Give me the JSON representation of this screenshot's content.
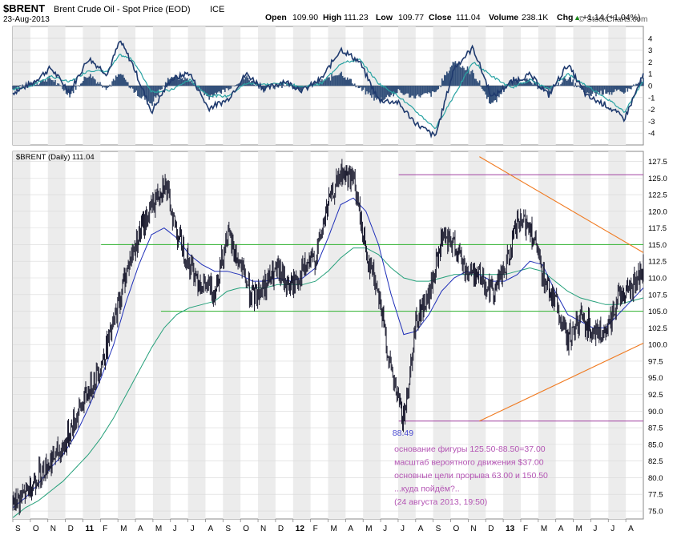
{
  "header": {
    "symbol": "$BRENT",
    "name": "Brent Crude Oil - Spot Price (EOD)",
    "exchange": "ICE",
    "date": "23-Aug-2013",
    "brand": "© StockCharts.com"
  },
  "quote": {
    "open_label": "Open",
    "open": "109.90",
    "high_label": "High",
    "high": "111.23",
    "low_label": "Low",
    "low": "109.77",
    "close_label": "Close",
    "close": "111.04",
    "volume_label": "Volume",
    "volume": "238.1K",
    "chg_label": "Chg",
    "chg": "+1.14 (+1.04%)",
    "chg_symbol": "▲"
  },
  "colors": {
    "price": "#1a1a2e",
    "ma_fast": "#1f2fb8",
    "ma_slow": "#25a07a",
    "trendline": "#f07a20",
    "horizontal": "#2fb32f",
    "target": "#a040a0",
    "osc_macd": "#1f3a6e",
    "osc_signal": "#2aa3a3",
    "osc_hist": "#33507a",
    "panel_bg_shade": "#ececec",
    "annotation": "#b455b4",
    "low_label": "#4a4ad0"
  },
  "chart_data": [
    {
      "type": "line",
      "panel": "oscillator",
      "ylim": [
        -5,
        5
      ],
      "yticks": [
        "4",
        "3",
        "2",
        "1",
        "0",
        "-1",
        "-2",
        "-3",
        "-4"
      ],
      "series": [],
      "trace_x": [
        0,
        0.03,
        0.06,
        0.09,
        0.12,
        0.15,
        0.17,
        0.19,
        0.22,
        0.25,
        0.28,
        0.31,
        0.34,
        0.37,
        0.4,
        0.43,
        0.46,
        0.49,
        0.52,
        0.55,
        0.58,
        0.61,
        0.64,
        0.67,
        0.7,
        0.73,
        0.76,
        0.79,
        0.82,
        0.85,
        0.88,
        0.91,
        0.94,
        0.97,
        1.0
      ],
      "macd": [
        -0.6,
        0.2,
        1.5,
        -0.5,
        2.3,
        1.0,
        3.8,
        1.8,
        -2.2,
        0.5,
        1.1,
        -1.9,
        -1.2,
        1.0,
        -0.3,
        0.4,
        -0.4,
        0.6,
        3.1,
        2.0,
        -1.2,
        -1.4,
        -3.2,
        -4.3,
        1.5,
        3.2,
        -1.0,
        0.3,
        0.9,
        -0.8,
        1.8,
        -0.9,
        -1.6,
        -2.8,
        0.9
      ],
      "signal": [
        -0.3,
        0.0,
        0.8,
        0.3,
        1.3,
        1.2,
        2.6,
        2.2,
        -0.5,
        -0.4,
        0.5,
        -0.8,
        -0.9,
        0.2,
        0.1,
        0.2,
        -0.1,
        0.2,
        1.9,
        2.2,
        0.2,
        -0.8,
        -2.2,
        -3.6,
        -0.8,
        2.0,
        0.8,
        -0.2,
        0.5,
        -0.3,
        1.0,
        0.0,
        -1.0,
        -2.2,
        0.4
      ]
    },
    {
      "type": "line",
      "panel": "price",
      "title": "$BRENT (Daily) 111.04",
      "ylim": [
        73.8,
        129.0
      ],
      "yticks": [
        "127.5",
        "125.0",
        "122.5",
        "120.0",
        "117.5",
        "115.0",
        "112.5",
        "110.0",
        "107.5",
        "105.0",
        "102.5",
        "100.0",
        "97.5",
        "95.0",
        "92.5",
        "90.0",
        "87.5",
        "85.0",
        "82.5",
        "80.0",
        "77.5",
        "75.0"
      ],
      "x_ticks": [
        "S",
        "O",
        "N",
        "D",
        "11",
        "F",
        "M",
        "A",
        "M",
        "J",
        "J",
        "A",
        "S",
        "O",
        "N",
        "D",
        "12",
        "F",
        "M",
        "A",
        "M",
        "J",
        "J",
        "A",
        "S",
        "O",
        "N",
        "D",
        "13",
        "F",
        "M",
        "A",
        "M",
        "J",
        "J",
        "A"
      ],
      "bold_ticks": [
        "11",
        "12",
        "13"
      ],
      "series": [],
      "price_x": [
        0,
        0.02,
        0.04,
        0.06,
        0.08,
        0.1,
        0.12,
        0.14,
        0.16,
        0.18,
        0.2,
        0.22,
        0.24,
        0.26,
        0.28,
        0.3,
        0.32,
        0.34,
        0.36,
        0.38,
        0.4,
        0.42,
        0.44,
        0.46,
        0.48,
        0.5,
        0.52,
        0.54,
        0.56,
        0.58,
        0.6,
        0.62,
        0.64,
        0.66,
        0.68,
        0.7,
        0.72,
        0.74,
        0.76,
        0.78,
        0.8,
        0.82,
        0.84,
        0.86,
        0.88,
        0.9,
        0.92,
        0.94,
        0.96,
        0.98,
        1.0
      ],
      "price_close": [
        76.0,
        77.5,
        80.5,
        82.5,
        84.5,
        89.0,
        93.0,
        97.0,
        103.0,
        111.0,
        116.5,
        120.5,
        124.5,
        117.0,
        112.0,
        109.0,
        108.0,
        116.5,
        112.0,
        107.0,
        109.0,
        111.0,
        108.5,
        111.0,
        113.0,
        121.0,
        125.5,
        125.0,
        114.0,
        108.0,
        95.5,
        88.5,
        104.0,
        107.0,
        115.5,
        115.0,
        111.0,
        110.5,
        108.0,
        111.0,
        118.0,
        118.0,
        110.5,
        106.5,
        100.5,
        104.0,
        102.5,
        101.0,
        107.5,
        108.5,
        111.0
      ],
      "ma_fast": [
        75.5,
        77.0,
        79.0,
        81.5,
        83.5,
        86.5,
        90.5,
        95.0,
        100.0,
        106.5,
        112.0,
        116.5,
        117.5,
        116.0,
        113.5,
        112.0,
        111.0,
        111.0,
        110.5,
        109.5,
        109.5,
        110.0,
        109.5,
        110.0,
        111.5,
        116.0,
        121.0,
        122.0,
        120.0,
        115.0,
        107.5,
        101.5,
        102.0,
        104.5,
        108.0,
        110.0,
        111.0,
        110.5,
        109.5,
        109.5,
        110.5,
        112.5,
        112.0,
        108.0,
        104.5,
        103.5,
        102.5,
        102.5,
        104.5,
        106.5,
        108.5
      ],
      "ma_slow": [
        74.0,
        75.5,
        76.5,
        78.0,
        79.5,
        81.5,
        83.5,
        86.0,
        89.0,
        92.5,
        96.0,
        99.5,
        102.5,
        104.5,
        105.5,
        106.0,
        106.5,
        108.0,
        108.5,
        108.5,
        108.5,
        109.0,
        109.0,
        109.0,
        109.5,
        111.0,
        113.0,
        114.5,
        114.5,
        113.5,
        111.5,
        110.0,
        109.5,
        109.5,
        110.0,
        110.5,
        110.5,
        110.5,
        110.5,
        110.5,
        111.0,
        111.5,
        111.0,
        109.5,
        108.0,
        107.0,
        106.5,
        106.0,
        106.0,
        106.5,
        107.0
      ],
      "levels": {
        "upper_target": 125.5,
        "resistance": 115.0,
        "support": 105.0,
        "low": 88.5
      },
      "trend_upper": [
        [
          0.74,
          128.2
        ],
        [
          1.0,
          113.8
        ]
      ],
      "trend_lower": [
        [
          0.74,
          88.5
        ],
        [
          1.0,
          100.2
        ]
      ],
      "low_value_label": "88.49",
      "annotations": [
        "основание фигуры 125.50-88.50=37.00",
        "масштаб вероятного движения $37.00",
        "основные цели прорыва 63.00 и 150.50",
        "...куда пойдём?..",
        "(24 августа 2013, 19:50)"
      ]
    }
  ]
}
